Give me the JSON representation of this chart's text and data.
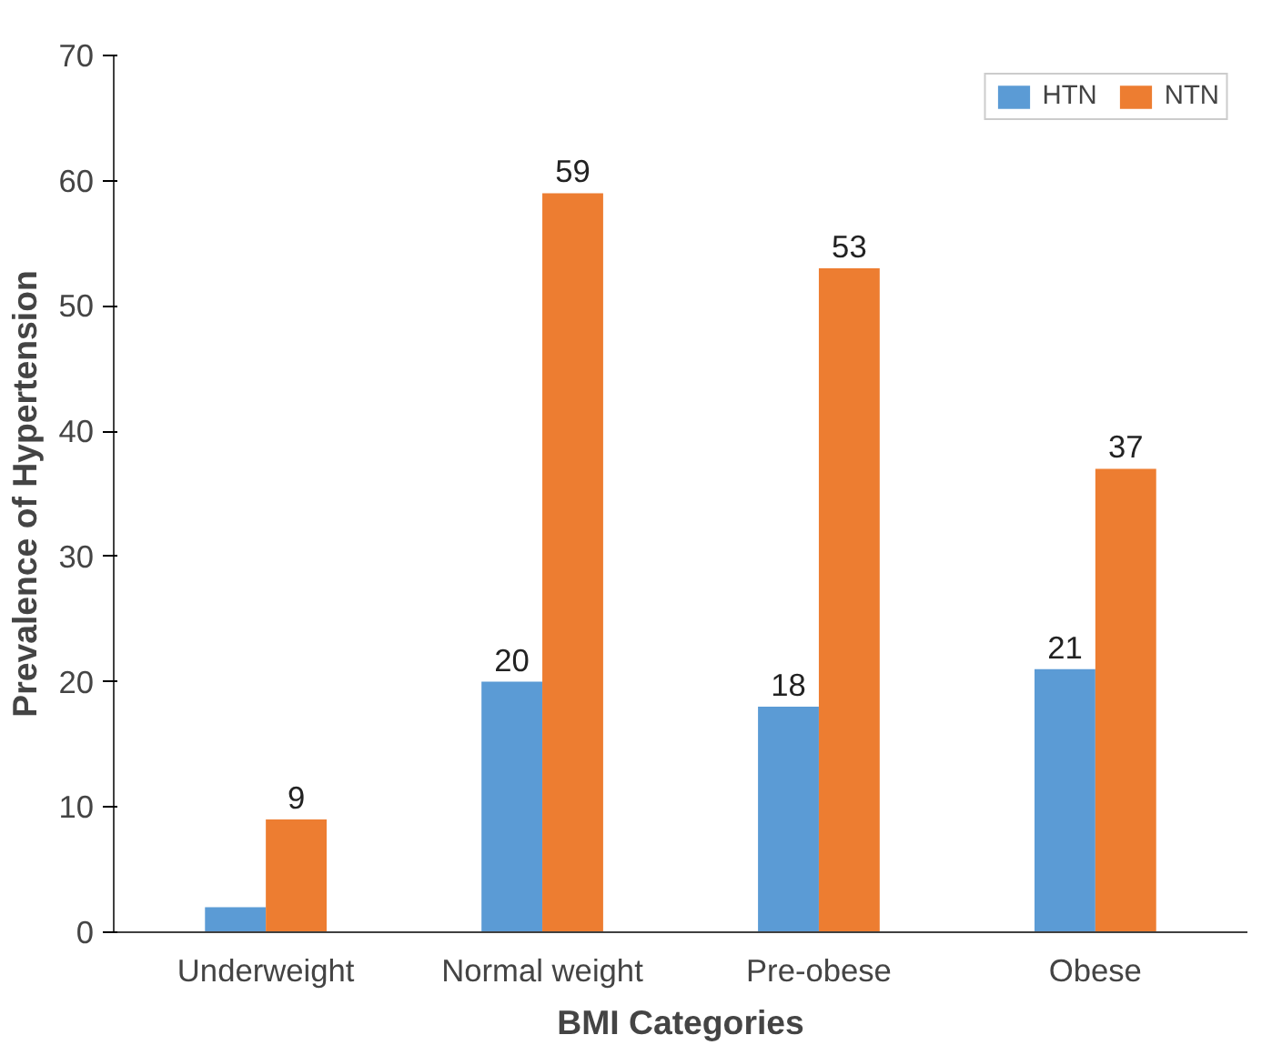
{
  "chart_data": {
    "type": "bar",
    "xlabel": "BMI Categories",
    "ylabel": "Prevalence of Hypertension",
    "categories": [
      "Underweight",
      "Normal weight",
      "Pre-obese",
      "Obese"
    ],
    "series": [
      {
        "name": "HTN",
        "color": "#5b9bd5",
        "values": [
          2,
          20,
          18,
          21
        ],
        "value_labels": [
          null,
          "20",
          "18",
          "21"
        ]
      },
      {
        "name": "NTN",
        "color": "#ed7d31",
        "values": [
          9,
          59,
          53,
          37
        ],
        "value_labels": [
          "9",
          "59",
          "53",
          "37"
        ]
      }
    ],
    "ylim": [
      0,
      70
    ],
    "yticks": [
      0,
      10,
      20,
      30,
      40,
      50,
      60,
      70
    ],
    "grid": false,
    "legend": "top right"
  }
}
